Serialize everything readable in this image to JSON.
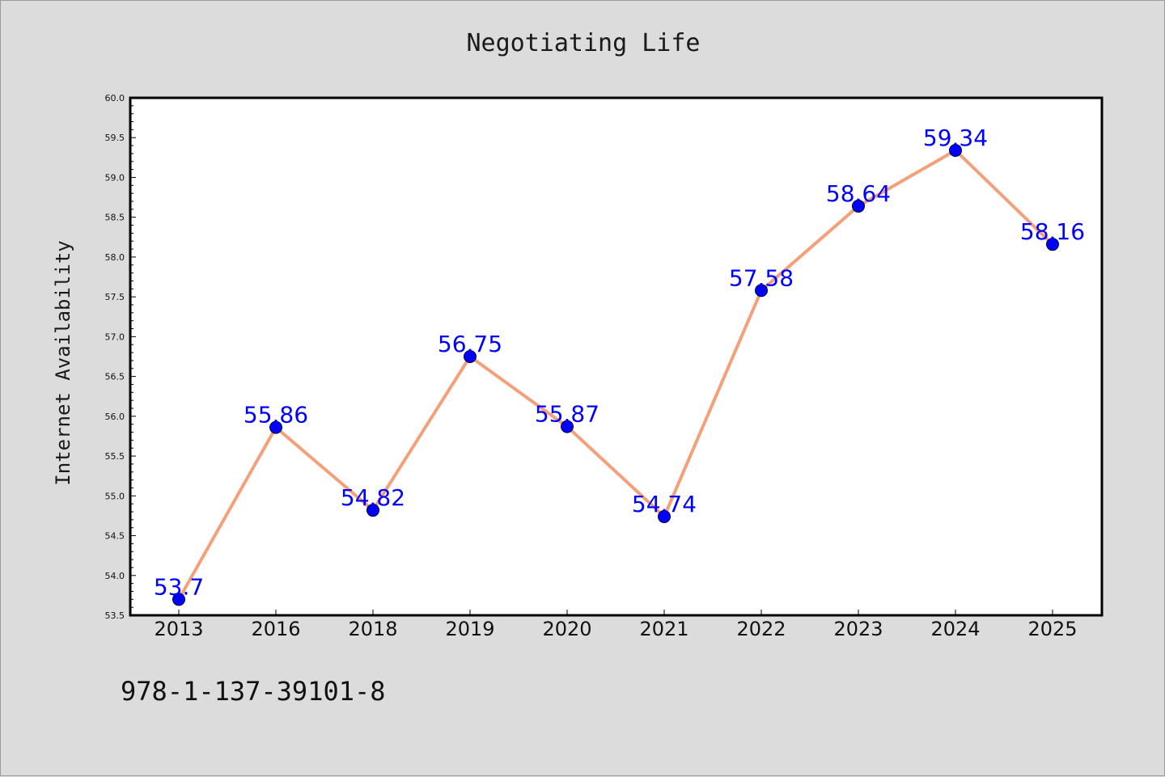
{
  "chart_data": {
    "type": "line",
    "title": "Negotiating Life",
    "xlabel": "",
    "ylabel": "Internet Availability",
    "categories": [
      "2013",
      "2016",
      "2018",
      "2019",
      "2020",
      "2021",
      "2022",
      "2023",
      "2024",
      "2025"
    ],
    "series": [
      {
        "values": [
          53.7,
          55.86,
          54.82,
          56.75,
          55.87,
          54.74,
          57.58,
          58.64,
          59.34,
          58.16
        ],
        "line_color": "#f4a07a",
        "marker_color": "#0000ff"
      }
    ],
    "data_labels": [
      "53.7",
      "55.86",
      "54.82",
      "56.75",
      "55.87",
      "54.74",
      "57.58",
      "58.64",
      "59.34",
      "58.16"
    ],
    "ylim": [
      53.5,
      60.0
    ],
    "yticks": [
      "53.5",
      "54.0",
      "54.5",
      "55.0",
      "55.5",
      "56.0",
      "56.5",
      "57.0",
      "57.5",
      "58.0",
      "58.5",
      "59.0",
      "59.5",
      "60.0"
    ],
    "grid": false,
    "legend": "none"
  },
  "footer": {
    "isbn": "978-1-137-39101-8"
  },
  "colors": {
    "background": "#dcdcdc",
    "plot_background": "#ffffff",
    "label_color": "#0000ff"
  }
}
